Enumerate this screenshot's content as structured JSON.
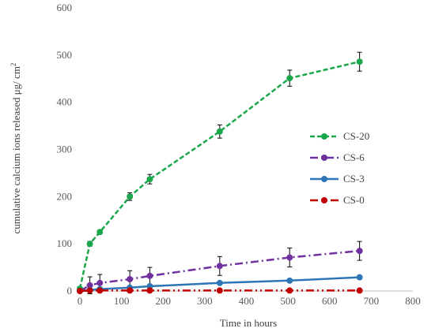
{
  "chart_data": {
    "type": "line",
    "xlabel": "Time in hours",
    "ylabel": "cumulative calcium ions released  μg/ cm",
    "ylabel_sup": "2",
    "xlim": [
      0,
      800
    ],
    "ylim": [
      0,
      600
    ],
    "x_ticks": [
      0,
      100,
      200,
      300,
      400,
      500,
      600,
      700,
      800
    ],
    "y_ticks": [
      0,
      100,
      200,
      300,
      400,
      500,
      600
    ],
    "grid": false,
    "legend_position": "right",
    "series": [
      {
        "name": "CS-20",
        "color": "#1aa64b",
        "dash": "dashed",
        "x": [
          0,
          24,
          48,
          120,
          168,
          336,
          504,
          672
        ],
        "y": [
          5,
          100,
          125,
          200,
          237,
          338,
          451,
          486
        ],
        "err": [
          0,
          5,
          4,
          8,
          10,
          14,
          17,
          20
        ]
      },
      {
        "name": "CS-6",
        "color": "#7030a0",
        "dash": "dash-dot",
        "x": [
          0,
          24,
          48,
          120,
          168,
          336,
          504,
          672
        ],
        "y": [
          0,
          12,
          17,
          25,
          32,
          53,
          71,
          85
        ],
        "err": [
          0,
          18,
          18,
          18,
          18,
          20,
          20,
          20
        ]
      },
      {
        "name": "CS-3",
        "color": "#2e75b6",
        "dash": "solid",
        "x": [
          0,
          24,
          48,
          120,
          168,
          336,
          504,
          672
        ],
        "y": [
          0,
          2,
          4,
          7,
          10,
          17,
          22,
          29
        ],
        "err": [
          0,
          0,
          0,
          0,
          0,
          0,
          0,
          0
        ]
      },
      {
        "name": "CS-0",
        "color": "#c00000",
        "dash": "dash-dot-dot",
        "x": [
          0,
          24,
          48,
          120,
          168,
          336,
          504,
          672
        ],
        "y": [
          0,
          1,
          1,
          1,
          1,
          1,
          1,
          1
        ],
        "err": [
          0,
          0,
          0,
          0,
          0,
          0,
          0,
          0
        ]
      }
    ]
  }
}
